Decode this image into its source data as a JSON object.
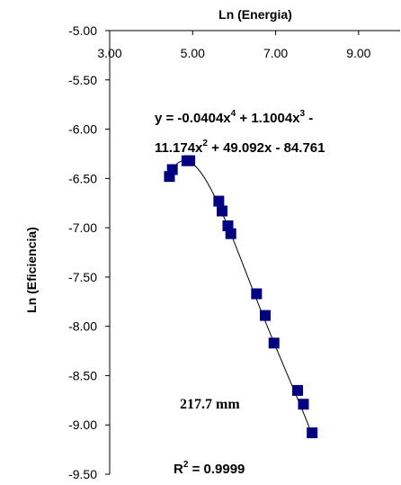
{
  "chart_data": {
    "type": "scatter",
    "xlabel": "Ln  (Energia)",
    "ylabel": "Ln (Eficiencia)",
    "x_axis": {
      "position": "top",
      "range": [
        3.0,
        10.0
      ],
      "ticks": [
        3.0,
        5.0,
        7.0,
        9.0
      ],
      "tick_labels": [
        "3.00",
        "5.00",
        "7.00",
        "9.00"
      ]
    },
    "y_axis": {
      "range": [
        -9.5,
        -5.0
      ],
      "ticks": [
        -5.0,
        -5.5,
        -6.0,
        -6.5,
        -7.0,
        -7.5,
        -8.0,
        -8.5,
        -9.0,
        -9.5
      ],
      "tick_labels": [
        "-5.00",
        "-5.50",
        "-6.00",
        "-6.50",
        "-7.00",
        "-7.50",
        "-8.00",
        "-8.50",
        "-9.00",
        "-9.50"
      ]
    },
    "grid": false,
    "marker": {
      "shape": "square",
      "color": "#000080"
    },
    "series": [
      {
        "points": [
          [
            4.44,
            -6.48
          ],
          [
            4.51,
            -6.41
          ],
          [
            4.86,
            -6.32
          ],
          [
            4.93,
            -6.32
          ],
          [
            5.63,
            -6.73
          ],
          [
            5.71,
            -6.83
          ],
          [
            5.85,
            -6.98
          ],
          [
            5.92,
            -7.06
          ],
          [
            6.54,
            -7.67
          ],
          [
            6.75,
            -7.89
          ],
          [
            6.96,
            -8.17
          ],
          [
            7.53,
            -8.65
          ],
          [
            7.67,
            -8.79
          ],
          [
            7.88,
            -9.08
          ]
        ]
      }
    ],
    "trendline": {
      "type": "polynomial",
      "order": 4,
      "coefficients": [
        -0.0404,
        1.1004,
        -11.174,
        49.092,
        -84.761
      ],
      "x_range": [
        4.44,
        7.88
      ],
      "color": "#000000"
    },
    "annotations": {
      "equation_line1": {
        "pre": "y = -0.0404x",
        "sup1": "4",
        "mid": " + 1.1004x",
        "sup2": "3",
        "post": " -"
      },
      "equation_line2": {
        "pre": "11.174x",
        "sup1": "2",
        "post": " + 49.092x - 84.761"
      },
      "sample_label": "217.7 mm",
      "r_squared": {
        "pre": "R",
        "sup": "2",
        "post": " = 0.9999"
      }
    }
  }
}
